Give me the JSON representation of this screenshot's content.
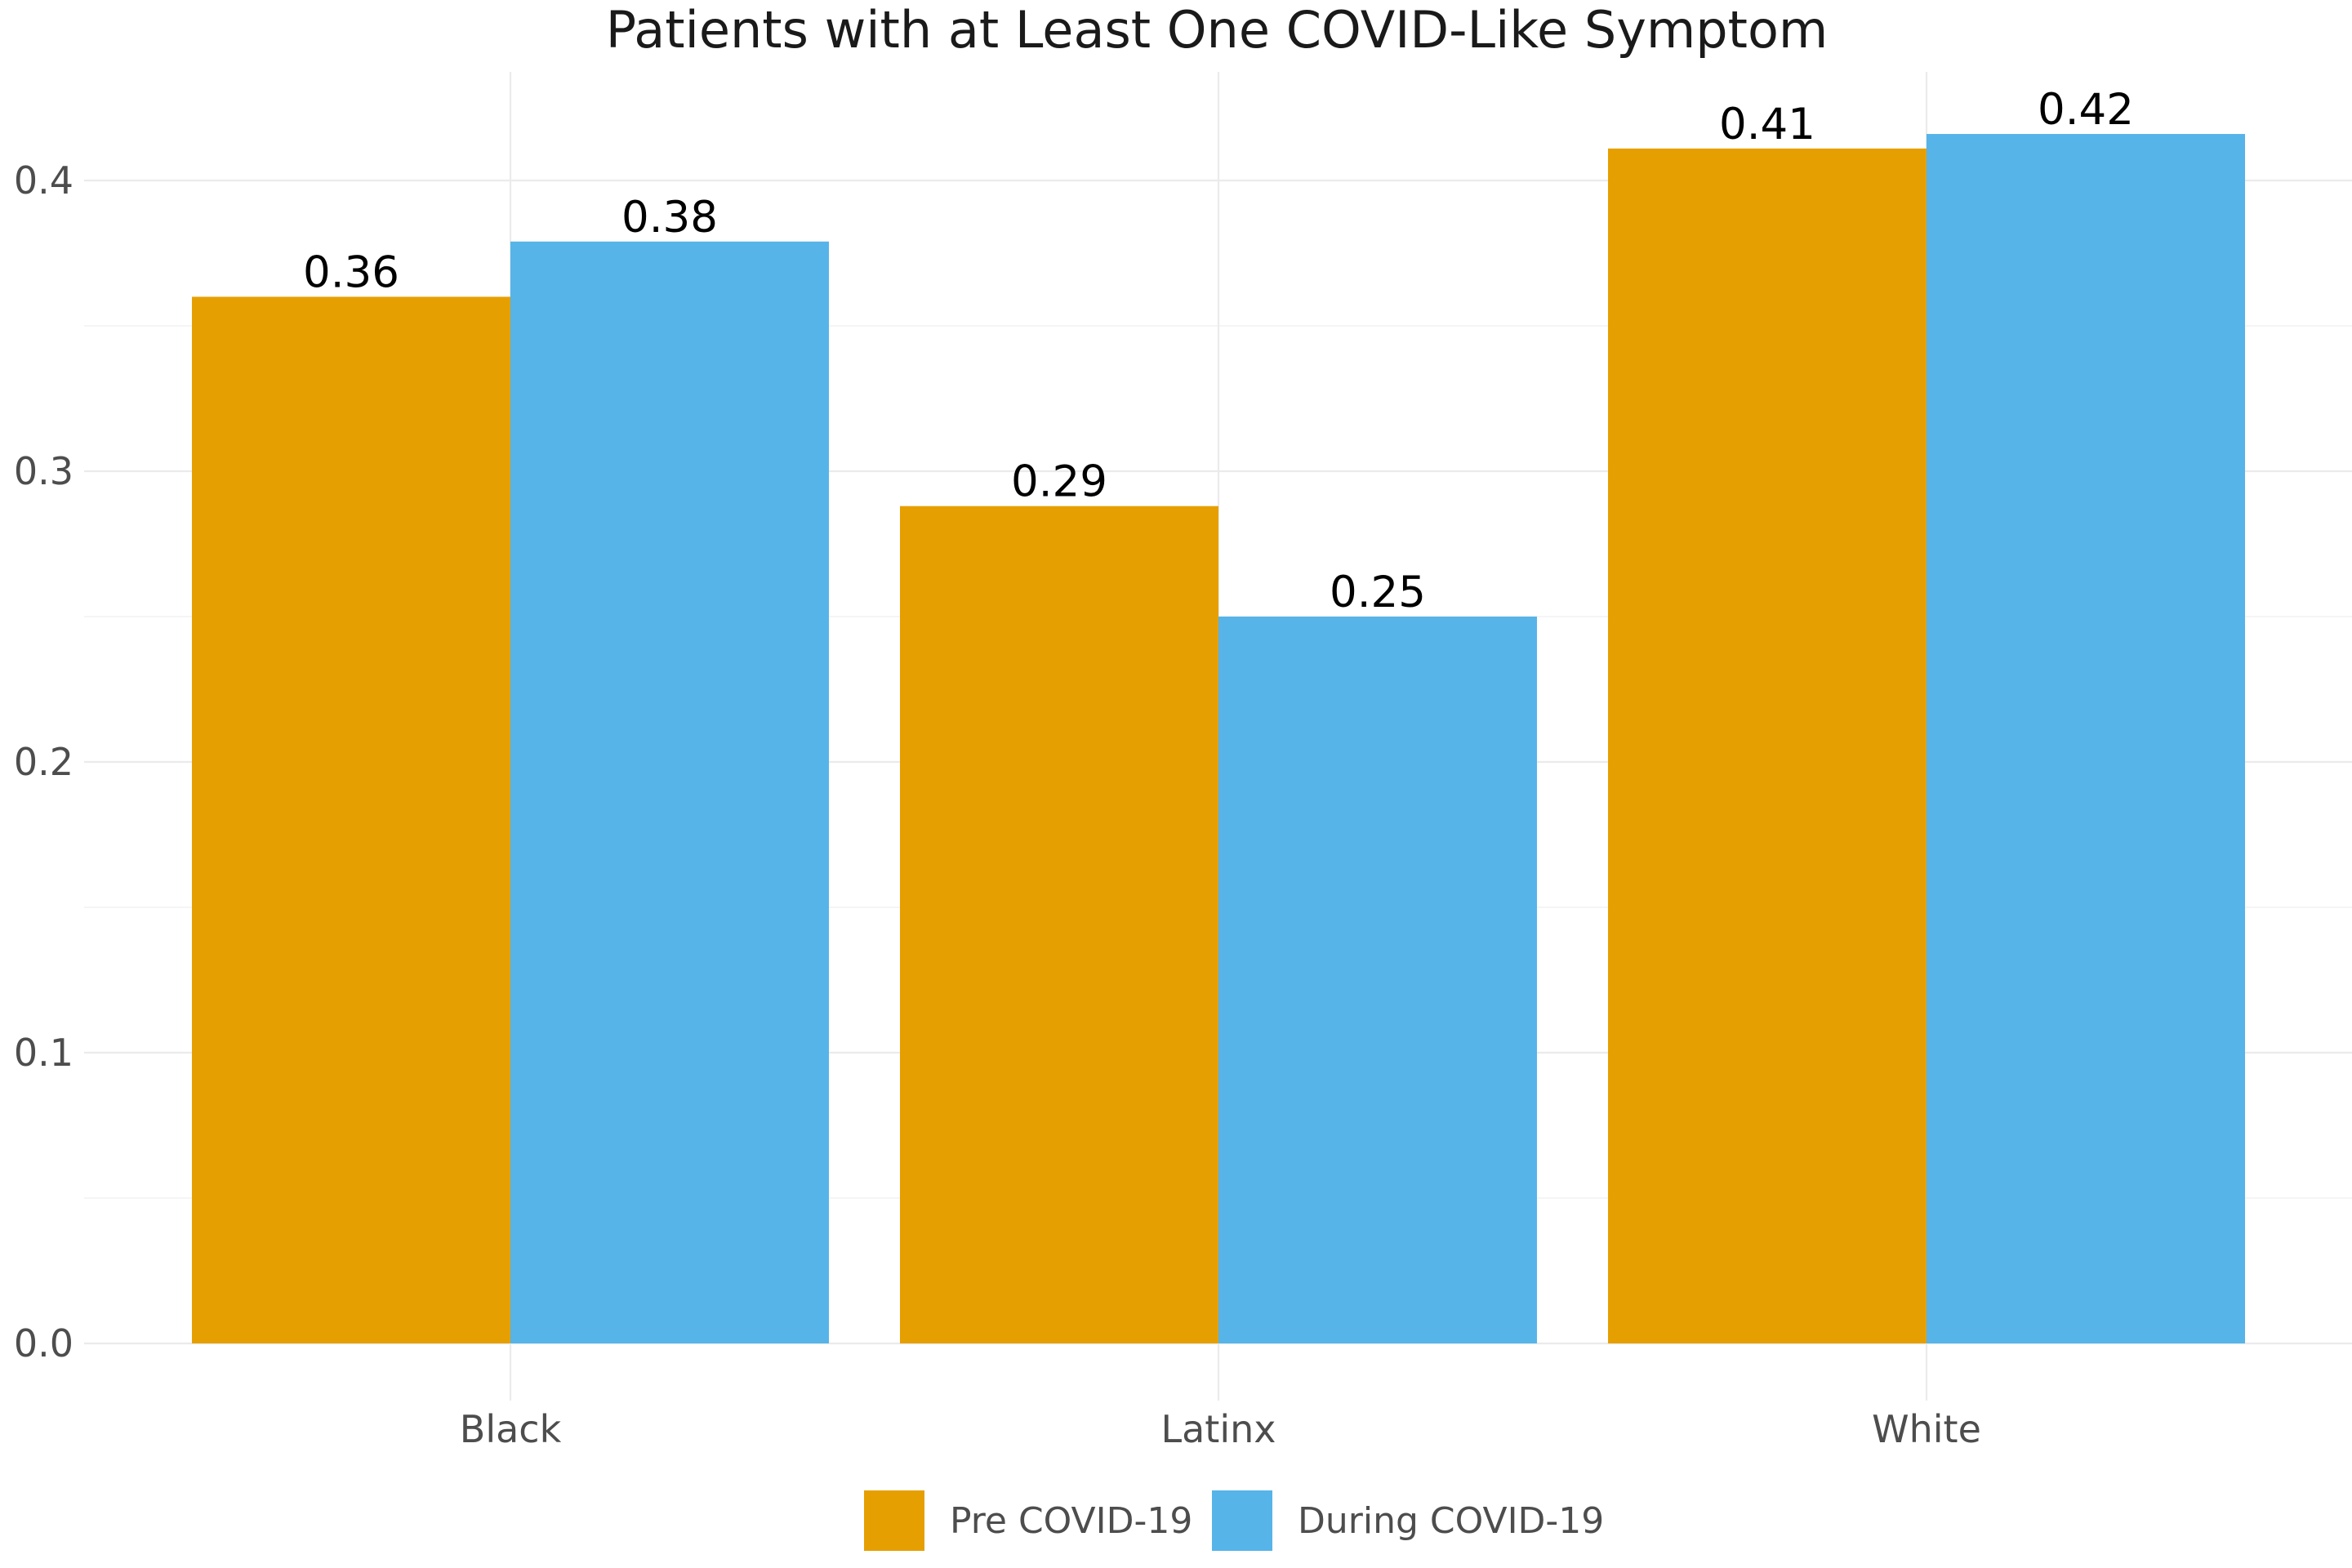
{
  "chart_data": {
    "type": "bar",
    "title": "Patients with at Least One COVID-Like Symptom",
    "xlabel": "",
    "ylabel": "",
    "categories": [
      "Black",
      "Latinx",
      "White"
    ],
    "series": [
      {
        "name": "Pre COVID-19",
        "color": "#E69F00",
        "values": [
          0.36,
          0.288,
          0.411
        ],
        "labels": [
          "0.36",
          "0.29",
          "0.41"
        ]
      },
      {
        "name": "During COVID-19",
        "color": "#56B4E9",
        "values": [
          0.379,
          0.25,
          0.416
        ],
        "labels": [
          "0.38",
          "0.25",
          "0.42"
        ]
      }
    ],
    "ylim": [
      -0.025,
      0.437
    ],
    "yticks": [
      0.0,
      0.1,
      0.2,
      0.3,
      0.4
    ],
    "ytick_labels": [
      "0.0",
      "0.1",
      "0.2",
      "0.3",
      "0.4"
    ],
    "grid": true,
    "legend_position": "bottom"
  }
}
